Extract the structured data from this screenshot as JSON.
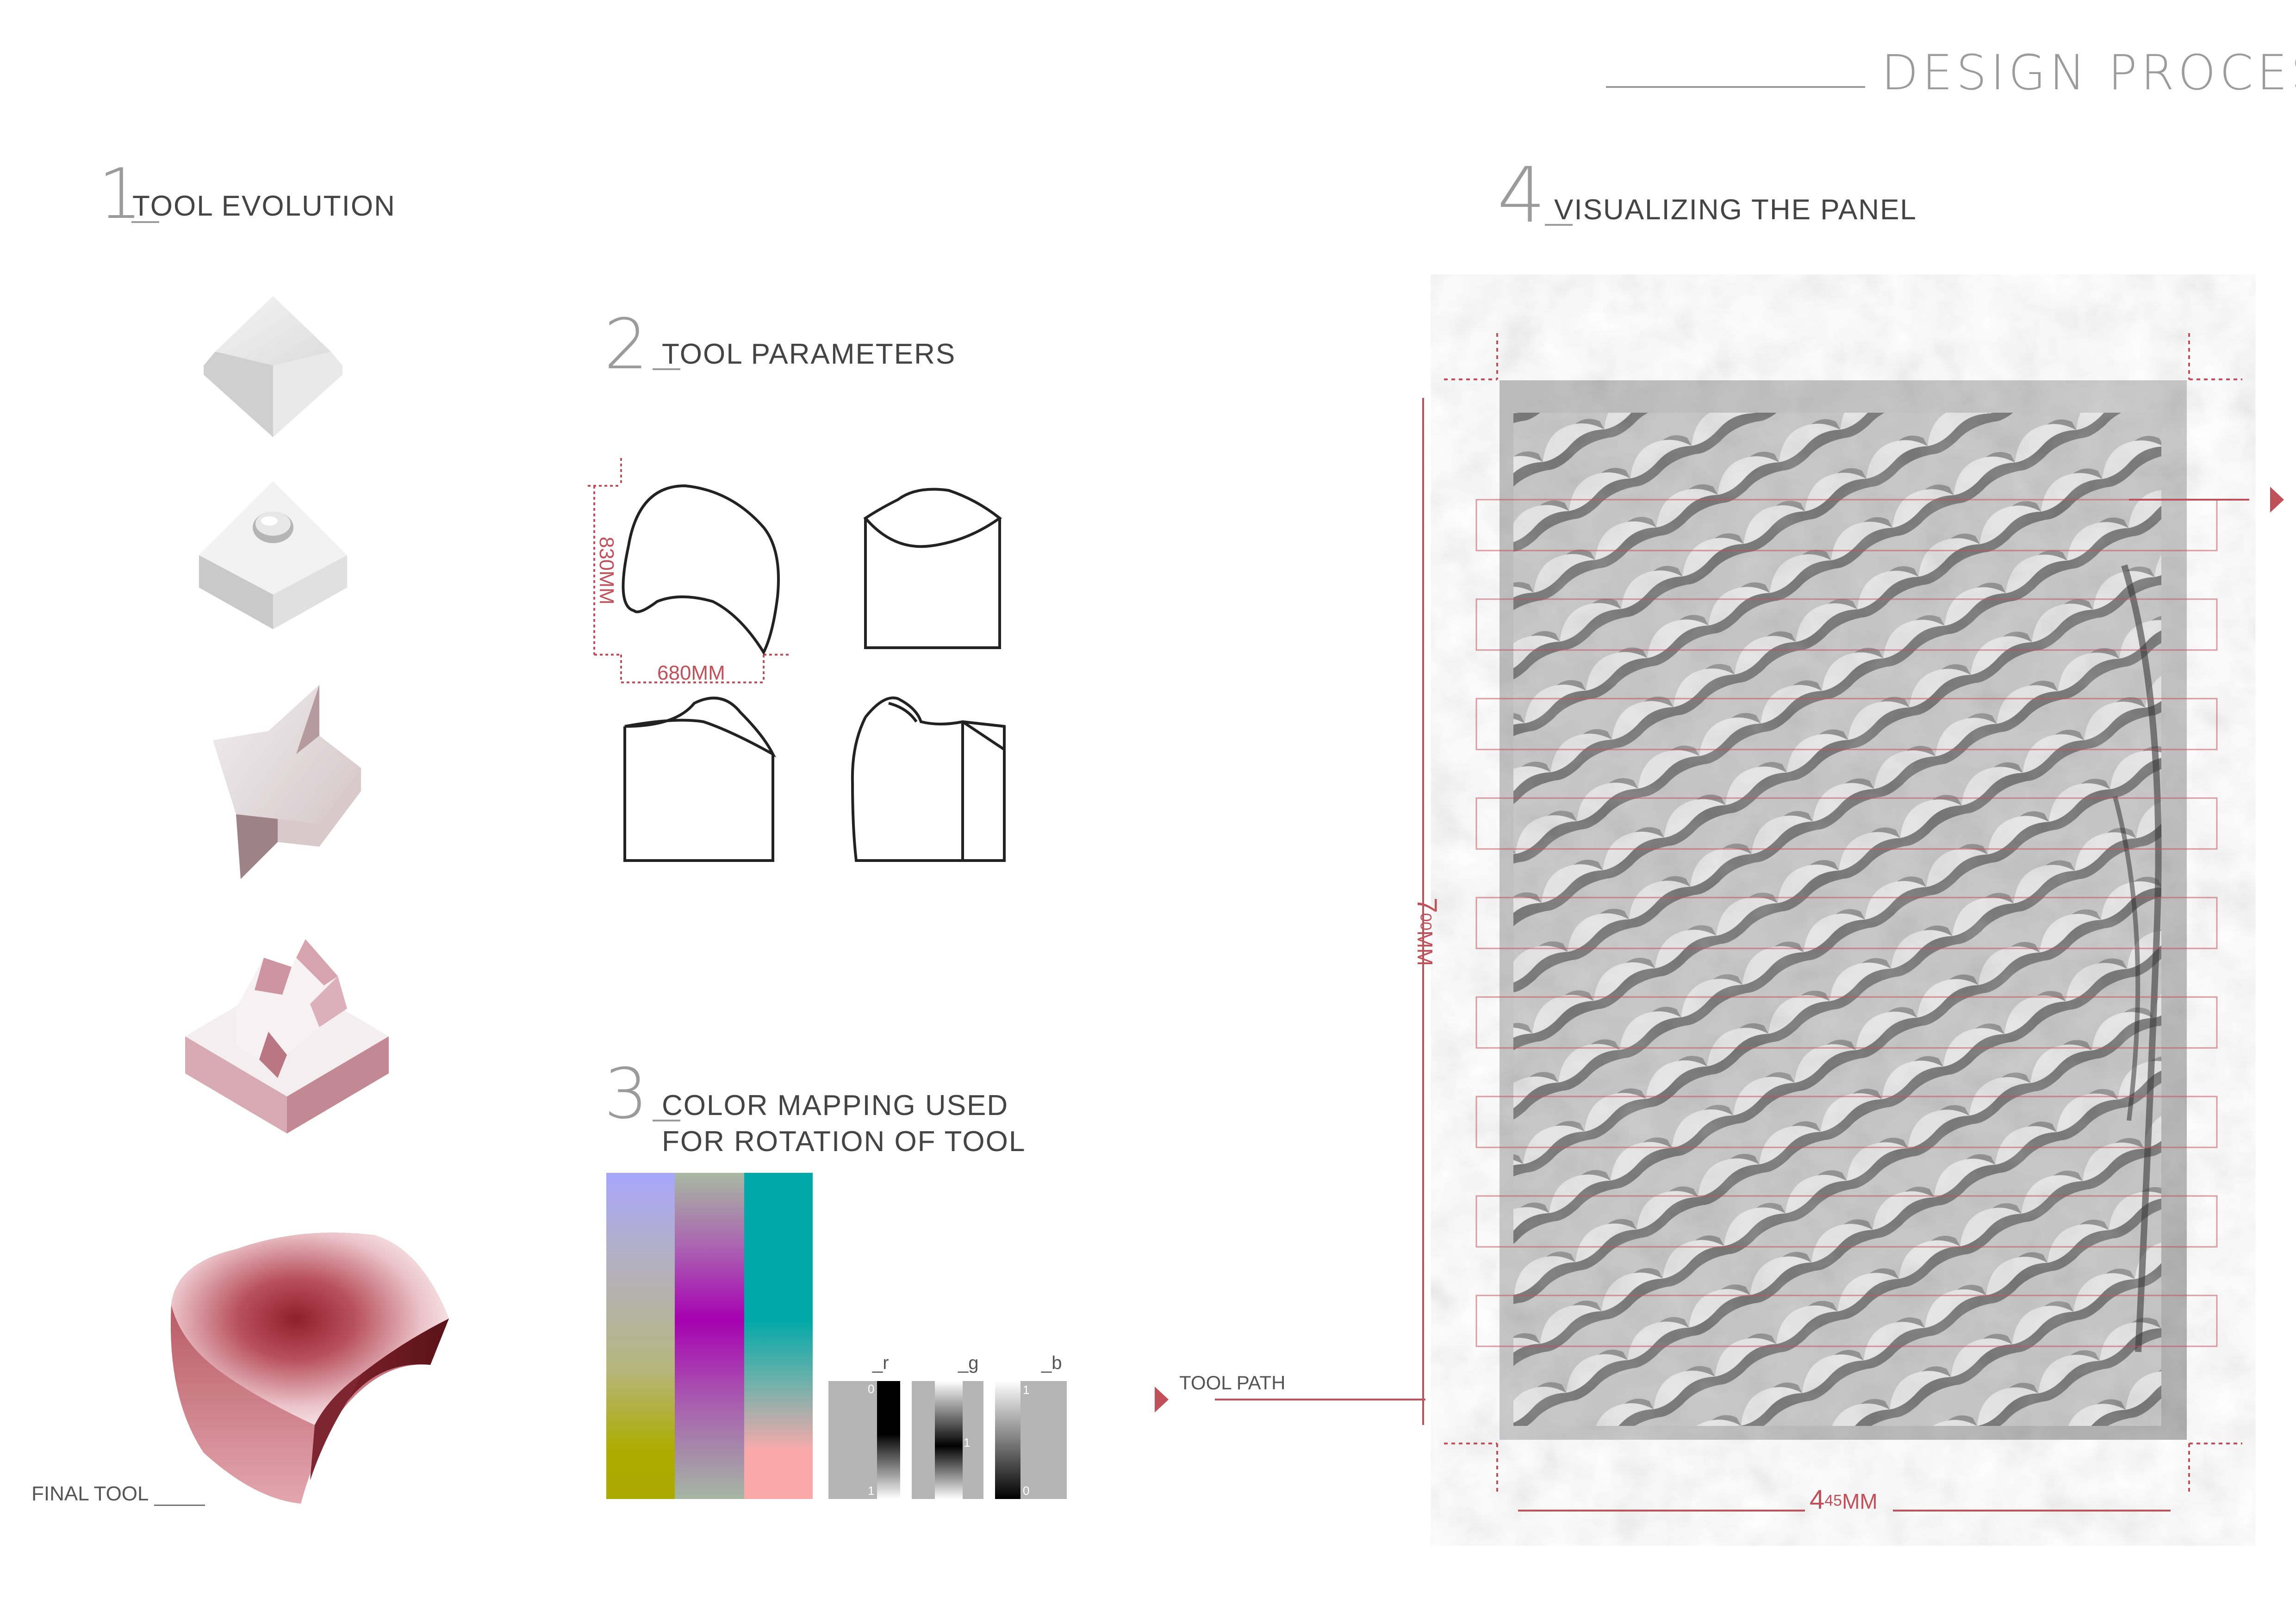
{
  "header": {
    "title": "DESIGN PROCESS"
  },
  "sections": {
    "tool_evolution": {
      "number": "1",
      "title": "TOOL EVOLUTION",
      "final_label": "FINAL TOOL"
    },
    "tool_parameters": {
      "number": "2",
      "title": "TOOL PARAMETERS",
      "height_dim": "830MM",
      "width_dim": "680MM"
    },
    "color_mapping": {
      "number": "3",
      "title_line1": "COLOR MAPPING USED",
      "title_line2": "FOR ROTATION OF TOOL",
      "channels": [
        {
          "label": "_r",
          "tick_top": "0",
          "tick_bottom": "1"
        },
        {
          "label": "_g",
          "tick_mid": "1"
        },
        {
          "label": "_b",
          "tick_top": "1",
          "tick_bottom": "0"
        }
      ]
    },
    "visualizing": {
      "number": "4",
      "title": "VISUALIZING THE PANEL",
      "tool_path_label": "TOOL PATH",
      "height_dim_main": "7",
      "height_dim_sup": "00",
      "height_dim_unit": "MM",
      "width_dim_main": "4",
      "width_dim_sup": "45",
      "width_dim_unit": "MM"
    }
  },
  "colors": {
    "accent_red": "#c0505a",
    "heading_gray": "#9b9b9b",
    "text_dark": "#444444"
  }
}
